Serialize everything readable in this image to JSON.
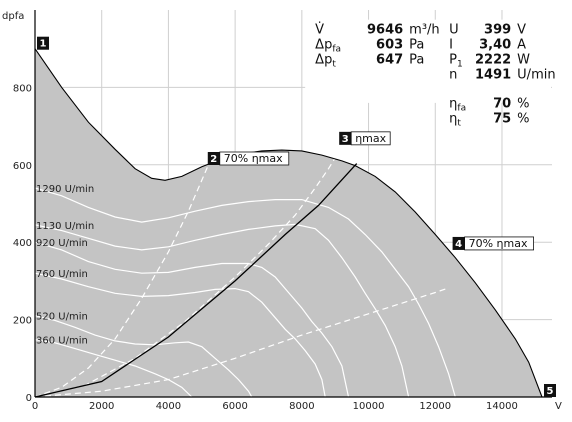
{
  "chart_data": {
    "type": "line",
    "xlabel": "V",
    "ylabel": "dpfa",
    "xlim": [
      0,
      15500
    ],
    "ylim": [
      0,
      1000
    ],
    "xticks": [
      0,
      2000,
      4000,
      6000,
      8000,
      10000,
      12000,
      14000
    ],
    "yticks": [
      0,
      200,
      400,
      600,
      800
    ],
    "grid": true,
    "envelope": [
      [
        0,
        900
      ],
      [
        800,
        800
      ],
      [
        1600,
        710
      ],
      [
        2400,
        640
      ],
      [
        3000,
        590
      ],
      [
        3500,
        565
      ],
      [
        3900,
        560
      ],
      [
        4400,
        570
      ],
      [
        5000,
        595
      ],
      [
        5600,
        615
      ],
      [
        6200,
        628
      ],
      [
        6800,
        636
      ],
      [
        7400,
        638
      ],
      [
        8000,
        636
      ],
      [
        8600,
        625
      ],
      [
        9200,
        610
      ],
      [
        9600,
        598
      ],
      [
        10200,
        570
      ],
      [
        10800,
        530
      ],
      [
        11400,
        478
      ],
      [
        12000,
        420
      ],
      [
        12600,
        360
      ],
      [
        13200,
        295
      ],
      [
        13800,
        225
      ],
      [
        14400,
        150
      ],
      [
        14800,
        90
      ],
      [
        15200,
        0
      ]
    ],
    "speed_curves": [
      {
        "label": "1290 U/min",
        "points": [
          [
            0,
            540
          ],
          [
            800,
            520
          ],
          [
            1600,
            490
          ],
          [
            2400,
            465
          ],
          [
            3200,
            452
          ],
          [
            4000,
            463
          ],
          [
            4800,
            480
          ],
          [
            5600,
            495
          ],
          [
            6400,
            505
          ],
          [
            7200,
            510
          ],
          [
            8000,
            510
          ],
          [
            8800,
            490
          ],
          [
            9400,
            460
          ],
          [
            9900,
            420
          ],
          [
            10400,
            375
          ],
          [
            10800,
            330
          ],
          [
            11200,
            285
          ],
          [
            11500,
            240
          ],
          [
            11800,
            190
          ],
          [
            12100,
            130
          ],
          [
            12400,
            60
          ],
          [
            12600,
            0
          ]
        ]
      },
      {
        "label": "1130 U/min",
        "points": [
          [
            0,
            445
          ],
          [
            800,
            430
          ],
          [
            1600,
            410
          ],
          [
            2400,
            390
          ],
          [
            3200,
            380
          ],
          [
            4000,
            388
          ],
          [
            4800,
            405
          ],
          [
            5600,
            420
          ],
          [
            6400,
            433
          ],
          [
            7200,
            442
          ],
          [
            7800,
            446
          ],
          [
            8400,
            435
          ],
          [
            8800,
            405
          ],
          [
            9200,
            360
          ],
          [
            9600,
            310
          ],
          [
            9900,
            268
          ],
          [
            10200,
            228
          ],
          [
            10500,
            185
          ],
          [
            10800,
            130
          ],
          [
            11000,
            80
          ],
          [
            11200,
            0
          ]
        ]
      },
      {
        "label": "920 U/min",
        "points": [
          [
            0,
            400
          ],
          [
            800,
            380
          ],
          [
            1600,
            350
          ],
          [
            2400,
            330
          ],
          [
            3200,
            320
          ],
          [
            4000,
            322
          ],
          [
            4800,
            335
          ],
          [
            5600,
            345
          ],
          [
            6400,
            345
          ],
          [
            6800,
            335
          ],
          [
            7200,
            310
          ],
          [
            7600,
            270
          ],
          [
            8000,
            230
          ],
          [
            8300,
            195
          ],
          [
            8600,
            165
          ],
          [
            8900,
            130
          ],
          [
            9200,
            80
          ],
          [
            9400,
            0
          ]
        ]
      },
      {
        "label": "760 U/min",
        "points": [
          [
            0,
            320
          ],
          [
            800,
            305
          ],
          [
            1600,
            285
          ],
          [
            2400,
            268
          ],
          [
            3200,
            260
          ],
          [
            4000,
            262
          ],
          [
            4800,
            270
          ],
          [
            5400,
            278
          ],
          [
            6000,
            280
          ],
          [
            6400,
            272
          ],
          [
            6800,
            245
          ],
          [
            7200,
            205
          ],
          [
            7500,
            175
          ],
          [
            7800,
            150
          ],
          [
            8100,
            120
          ],
          [
            8400,
            85
          ],
          [
            8600,
            45
          ],
          [
            8700,
            0
          ]
        ]
      },
      {
        "label": "520 U/min",
        "points": [
          [
            0,
            210
          ],
          [
            600,
            198
          ],
          [
            1200,
            180
          ],
          [
            1800,
            160
          ],
          [
            2400,
            145
          ],
          [
            3000,
            137
          ],
          [
            3600,
            135
          ],
          [
            4200,
            140
          ],
          [
            4600,
            142
          ],
          [
            5000,
            130
          ],
          [
            5400,
            100
          ],
          [
            5800,
            70
          ],
          [
            6100,
            45
          ],
          [
            6400,
            15
          ],
          [
            6500,
            0
          ]
        ]
      },
      {
        "label": "360 U/min",
        "points": [
          [
            0,
            148
          ],
          [
            600,
            140
          ],
          [
            1200,
            125
          ],
          [
            1800,
            110
          ],
          [
            2400,
            95
          ],
          [
            3000,
            80
          ],
          [
            3600,
            60
          ],
          [
            4000,
            45
          ],
          [
            4400,
            25
          ],
          [
            4700,
            0
          ]
        ]
      }
    ],
    "system_curve": [
      [
        0,
        0
      ],
      [
        2000,
        40
      ],
      [
        4000,
        155
      ],
      [
        6000,
        300
      ],
      [
        7500,
        420
      ],
      [
        8500,
        495
      ],
      [
        9646,
        603
      ]
    ],
    "eta_lines": [
      {
        "name": "70% ηmax",
        "points": [
          [
            0,
            0
          ],
          [
            800,
            25
          ],
          [
            1600,
            75
          ],
          [
            2400,
            150
          ],
          [
            3200,
            255
          ],
          [
            4000,
            375
          ],
          [
            4600,
            480
          ],
          [
            5000,
            560
          ],
          [
            5200,
            600
          ],
          [
            5300,
            615
          ]
        ]
      },
      {
        "name": "ηmax",
        "points": [
          [
            0,
            0
          ],
          [
            1500,
            30
          ],
          [
            3000,
            100
          ],
          [
            4500,
            195
          ],
          [
            6000,
            310
          ],
          [
            7000,
            395
          ],
          [
            7800,
            470
          ],
          [
            8400,
            540
          ],
          [
            8800,
            590
          ],
          [
            9000,
            618
          ]
        ]
      },
      {
        "name": "70% ηmax",
        "points": [
          [
            0,
            0
          ],
          [
            2000,
            15
          ],
          [
            4000,
            45
          ],
          [
            6000,
            100
          ],
          [
            8000,
            160
          ],
          [
            10000,
            215
          ],
          [
            12000,
            270
          ],
          [
            12400,
            282
          ]
        ]
      }
    ],
    "markers": [
      {
        "id": "1",
        "label": ""
      },
      {
        "id": "2",
        "label": "70% ηmax"
      },
      {
        "id": "3",
        "label": "ηmax"
      },
      {
        "id": "4",
        "label": "70% ηmax"
      },
      {
        "id": "5",
        "label": ""
      }
    ],
    "operating_point": {
      "left": [
        {
          "sym": "V̇",
          "sub": "",
          "value": "9646",
          "unit": "m³/h"
        },
        {
          "sym": "Δp",
          "sub": "fa",
          "value": "603",
          "unit": "Pa"
        },
        {
          "sym": "Δp",
          "sub": "t",
          "value": "647",
          "unit": "Pa"
        }
      ],
      "right": [
        {
          "sym": "U",
          "sub": "",
          "value": "399",
          "unit": "V"
        },
        {
          "sym": "I",
          "sub": "",
          "value": "3,40",
          "unit": "A"
        },
        {
          "sym": "P",
          "sub": "1",
          "value": "2222",
          "unit": "W"
        },
        {
          "sym": "n",
          "sub": "",
          "value": "1491",
          "unit": "U/min"
        }
      ],
      "eta": [
        {
          "sym": "η",
          "sub": "fa",
          "value": "70",
          "unit": "%"
        },
        {
          "sym": "η",
          "sub": "t",
          "value": "75",
          "unit": "%"
        }
      ]
    },
    "colors": {
      "area": "#c4c4c4",
      "grid": "#cfcfcf",
      "curve": "#ffffff",
      "system": "#000000",
      "marker_box": "#111111"
    }
  }
}
